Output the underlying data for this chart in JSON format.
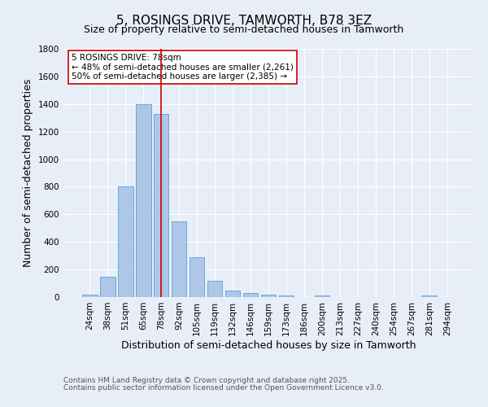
{
  "title": "5, ROSINGS DRIVE, TAMWORTH, B78 3EZ",
  "subtitle": "Size of property relative to semi-detached houses in Tamworth",
  "xlabel": "Distribution of semi-detached houses by size in Tamworth",
  "ylabel": "Number of semi-detached properties",
  "footnote1": "Contains HM Land Registry data © Crown copyright and database right 2025.",
  "footnote2": "Contains public sector information licensed under the Open Government Licence v3.0.",
  "annotation_line1": "5 ROSINGS DRIVE: 78sqm",
  "annotation_line2": "← 48% of semi-detached houses are smaller (2,261)",
  "annotation_line3": "50% of semi-detached houses are larger (2,385) →",
  "bar_labels": [
    "24sqm",
    "38sqm",
    "51sqm",
    "65sqm",
    "78sqm",
    "92sqm",
    "105sqm",
    "119sqm",
    "132sqm",
    "146sqm",
    "159sqm",
    "173sqm",
    "186sqm",
    "200sqm",
    "213sqm",
    "227sqm",
    "240sqm",
    "254sqm",
    "267sqm",
    "281sqm",
    "294sqm"
  ],
  "bar_values": [
    15,
    150,
    805,
    1400,
    1330,
    550,
    290,
    120,
    50,
    30,
    15,
    10,
    0,
    10,
    0,
    0,
    0,
    0,
    0,
    10,
    0
  ],
  "bar_color": "#aec6e8",
  "bar_edge_color": "#5a9fd4",
  "vline_x": 4,
  "vline_color": "#cc0000",
  "ylim": [
    0,
    1800
  ],
  "yticks": [
    0,
    200,
    400,
    600,
    800,
    1000,
    1200,
    1400,
    1600,
    1800
  ],
  "background_color": "#e8eef8",
  "grid_color": "#ffffff",
  "title_fontsize": 11,
  "subtitle_fontsize": 9,
  "axis_label_fontsize": 9,
  "tick_fontsize": 7.5,
  "annotation_fontsize": 7.5,
  "footnote_fontsize": 6.5
}
